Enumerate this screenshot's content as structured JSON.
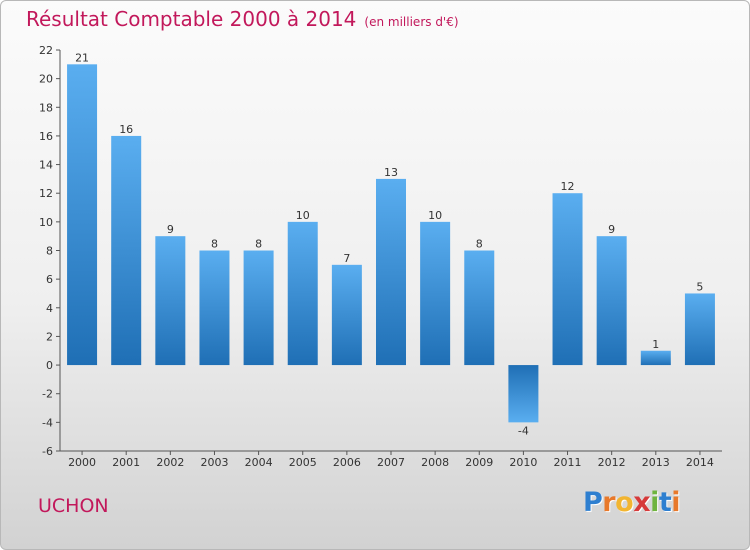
{
  "title": {
    "main": "Résultat Comptable 2000 à 2014",
    "unit": "(en milliers d'€)"
  },
  "place": "UCHON",
  "logo": {
    "letters": [
      "P",
      "r",
      "o",
      "x",
      "i",
      "t",
      "i"
    ],
    "colors": [
      "#2e7fd0",
      "#e8792b",
      "#f2b531",
      "#d63a3a",
      "#6fb43f",
      "#2e7fd0",
      "#e8792b"
    ]
  },
  "colors": {
    "title": "#c2185b",
    "bar_light": "#5aaef0",
    "bar_dark": "#1f6fb5"
  },
  "chart_data": {
    "type": "bar",
    "title": "Résultat Comptable 2000 à 2014",
    "subtitle": "(en milliers d'€)",
    "categories": [
      "2000",
      "2001",
      "2002",
      "2003",
      "2004",
      "2005",
      "2006",
      "2007",
      "2008",
      "2009",
      "2010",
      "2011",
      "2012",
      "2013",
      "2014"
    ],
    "values": [
      21,
      16,
      9,
      8,
      8,
      10,
      7,
      13,
      10,
      8,
      -4,
      12,
      9,
      1,
      5
    ],
    "ylim": [
      -6,
      22
    ],
    "yticks": [
      -6,
      -4,
      -2,
      0,
      2,
      4,
      6,
      8,
      10,
      12,
      14,
      16,
      18,
      20,
      22
    ],
    "xlabel": "",
    "ylabel": "",
    "grid": false
  }
}
